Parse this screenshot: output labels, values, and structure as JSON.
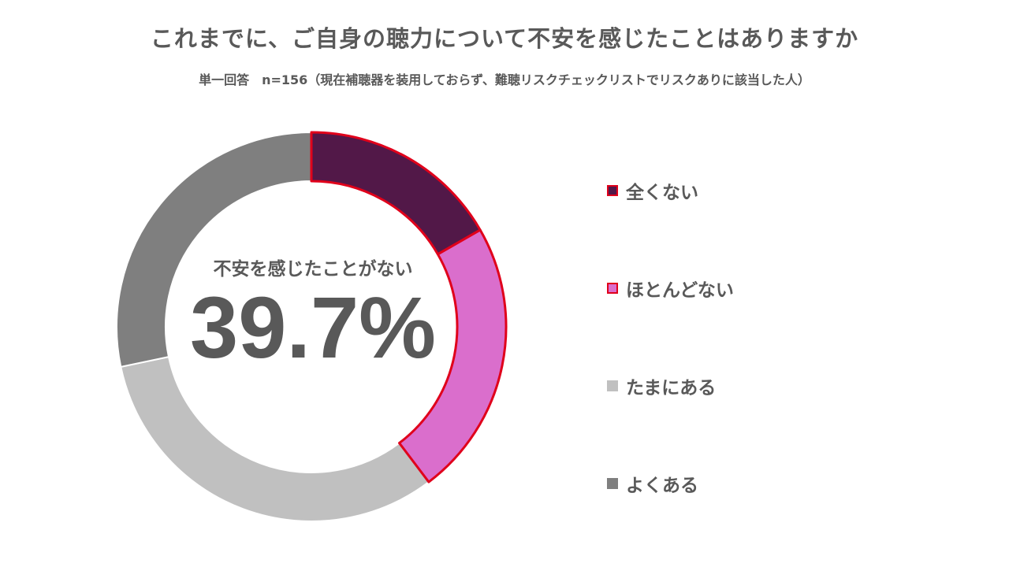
{
  "header": {
    "title": "これまでに、ご自身の聴力について不安を感じたことはありますか",
    "subtitle": "単一回答　n=156（現在補聴器を装用しておらず、難聴リスクチェックリストでリスクありに該当した人）"
  },
  "center": {
    "label": "不安を感じたことがない",
    "value": "39.7%"
  },
  "chart_data": {
    "type": "pie",
    "variant": "donut",
    "title": "これまでに、ご自身の聴力について不安を感じたことはありますか",
    "unit": "%",
    "start_angle_deg": 0,
    "direction": "clockwise",
    "legend_position": "right",
    "categories": [
      "全くない",
      "ほとんどない",
      "たまにある",
      "よくある"
    ],
    "values": [
      16.7,
      23.0,
      32.0,
      28.3
    ],
    "colors": [
      "#521848",
      "#DA6ECC",
      "#C0C0C0",
      "#7F7F7F"
    ],
    "highlight_border": [
      true,
      true,
      false,
      false
    ],
    "highlight_color": "#E0001B",
    "annotations": [
      {
        "label": "不安を感じたことがない",
        "value": "39.7%"
      }
    ]
  },
  "legend": {
    "items": [
      {
        "label": "全くない",
        "color": "#521848",
        "border": "#E0001B"
      },
      {
        "label": "ほとんどない",
        "color": "#DA6ECC",
        "border": "#E0001B"
      },
      {
        "label": "たまにある",
        "color": "#C0C0C0",
        "border": "#C0C0C0"
      },
      {
        "label": "よくある",
        "color": "#7F7F7F",
        "border": "#7F7F7F"
      }
    ]
  }
}
